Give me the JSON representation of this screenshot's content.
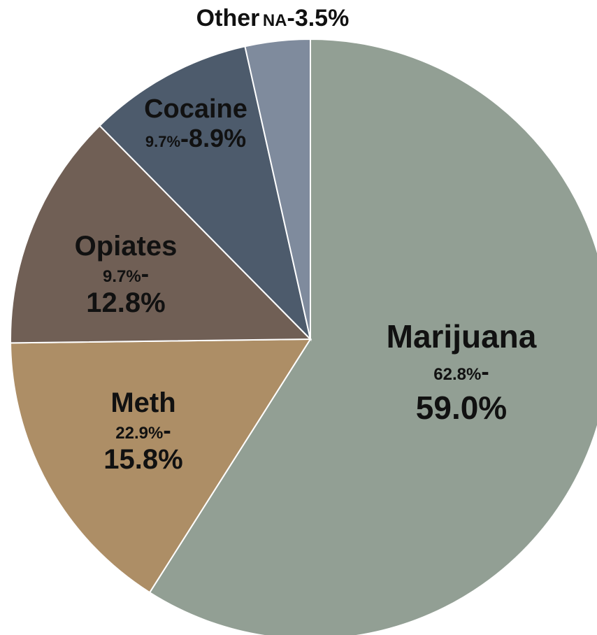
{
  "chart_data": {
    "type": "pie",
    "start_angle_deg": 0,
    "direction": "clockwise",
    "slices": [
      {
        "name": "Marijuana",
        "value": 59.0,
        "prev": "62.8%",
        "cur": "59.0%",
        "color": "#929f94"
      },
      {
        "name": "Meth",
        "value": 15.8,
        "prev": "22.9%",
        "cur": "15.8%",
        "color": "#ad8e66"
      },
      {
        "name": "Opiates",
        "value": 12.8,
        "prev": "9.7%",
        "cur": "12.8%",
        "color": "#705f55"
      },
      {
        "name": "Cocaine",
        "value": 8.9,
        "prev": "9.7%",
        "cur": "8.9%",
        "color": "#4d5b6c"
      },
      {
        "name": "Other",
        "value": 3.5,
        "prev": "NA",
        "cur": "3.5%",
        "color": "#7f8b9d"
      }
    ],
    "slice_border_color": "#ffffff"
  }
}
